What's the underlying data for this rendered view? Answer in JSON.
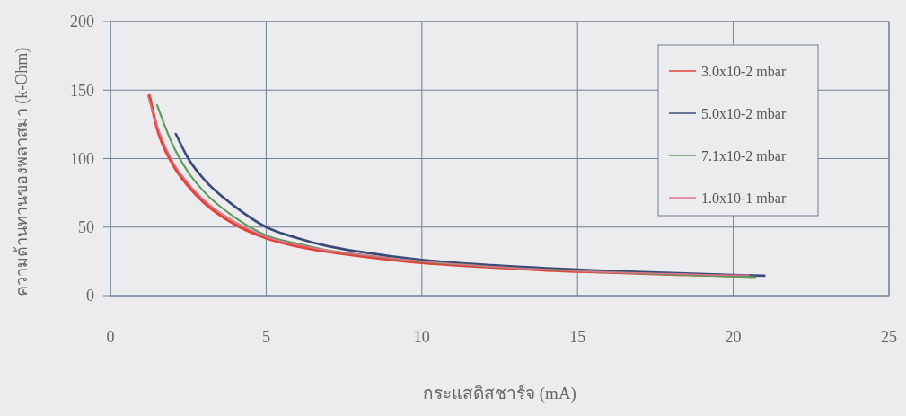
{
  "chart_data": {
    "type": "line",
    "xlabel": "กระแสดิสชาร์จ (mA)",
    "ylabel": "ความต้านทานของพลาสมา (k-Ohm)",
    "xlim": [
      0,
      25
    ],
    "xticks": [
      0,
      5,
      10,
      15,
      20,
      25
    ],
    "ylim": [
      0,
      200
    ],
    "yticks": [
      0,
      50,
      100,
      150,
      200
    ],
    "grid": true,
    "legend": "top right",
    "marker": "none",
    "line_style": "solid",
    "series": [
      {
        "name": "3.0x10-2 mbar",
        "color": "#e0453a",
        "x": [
          1.25,
          1.5,
          2,
          2.5,
          3,
          4,
          5,
          6,
          7,
          8,
          10,
          12,
          14,
          16,
          18,
          20,
          20.6
        ],
        "values": [
          146,
          122,
          96,
          80,
          68,
          52,
          42,
          36,
          32,
          29,
          24,
          21,
          18.5,
          17,
          15.5,
          14.5,
          14
        ]
      },
      {
        "name": "5.0x10-2 mbar",
        "color": "#3a4a7a",
        "x": [
          2.1,
          2.5,
          3,
          4,
          5,
          6,
          7,
          8,
          10,
          12,
          14,
          16,
          18,
          20,
          21
        ],
        "values": [
          118,
          100,
          85,
          65,
          50,
          42,
          36,
          32,
          26,
          22.5,
          20,
          18,
          16.5,
          15,
          14.5
        ]
      },
      {
        "name": "7.1x10-2 mbar",
        "color": "#5a9a5a",
        "x": [
          1.5,
          2,
          2.5,
          3,
          4,
          5,
          6,
          7,
          8,
          10,
          12,
          14,
          16,
          18,
          20,
          20.7
        ],
        "values": [
          139,
          110,
          90,
          76,
          57,
          44,
          38,
          33,
          30,
          25,
          21.5,
          19,
          17,
          15.5,
          14,
          13.5
        ]
      },
      {
        "name": "1.0x10-1 mbar",
        "color": "#e0708a",
        "x": [
          1.2,
          1.5,
          2,
          2.5,
          3,
          4,
          5,
          6,
          7,
          8,
          10,
          12,
          14,
          16,
          18,
          20,
          20.5
        ],
        "values": [
          146,
          124,
          98,
          82,
          70,
          54,
          43,
          37,
          33,
          30,
          25,
          21.5,
          19,
          17,
          16,
          15,
          15
        ]
      }
    ]
  }
}
